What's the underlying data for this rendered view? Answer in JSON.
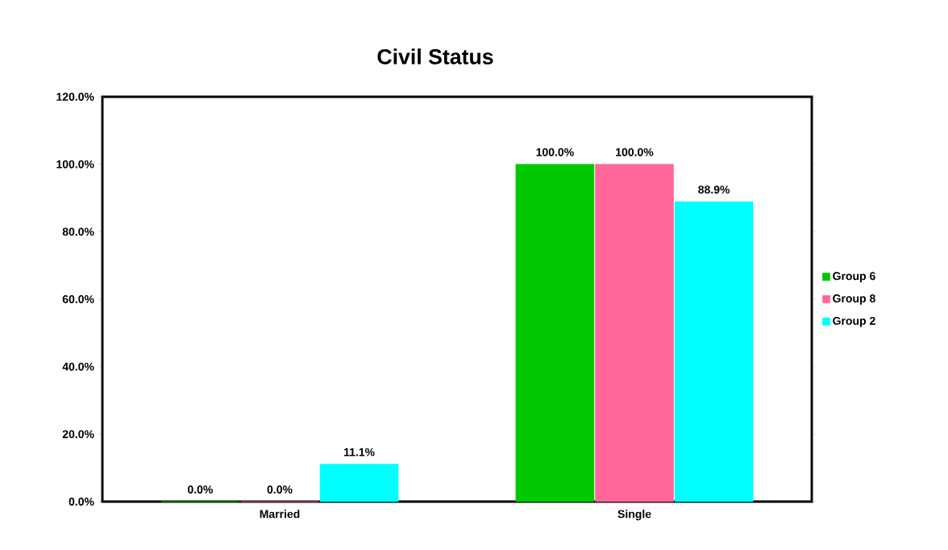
{
  "chart_data": {
    "type": "bar",
    "title": "Civil Status",
    "categories": [
      "Married",
      "Single"
    ],
    "series": [
      {
        "name": "Group 6",
        "color": "#00c800",
        "values": [
          0,
          100
        ],
        "value_labels": [
          "0.0%",
          "100.0%"
        ]
      },
      {
        "name": "Group 8",
        "color": "#ff6699",
        "values": [
          0,
          100
        ],
        "value_labels": [
          "0.0%",
          "100.0%"
        ]
      },
      {
        "name": "Group 2",
        "color": "#00ffff",
        "values": [
          11.1,
          88.9
        ],
        "value_labels": [
          "11.1%",
          "88.9%"
        ]
      }
    ],
    "ylim": [
      0,
      120
    ],
    "yticks": [
      {
        "value": 0,
        "label": "0.0%"
      },
      {
        "value": 20,
        "label": "20.0%"
      },
      {
        "value": 40,
        "label": "40.0%"
      },
      {
        "value": 60,
        "label": "60.0%"
      },
      {
        "value": 80,
        "label": "80.0%"
      },
      {
        "value": 100,
        "label": "100.0%"
      },
      {
        "value": 120,
        "label": "120.0%"
      }
    ],
    "legend": "right",
    "grid": false
  }
}
